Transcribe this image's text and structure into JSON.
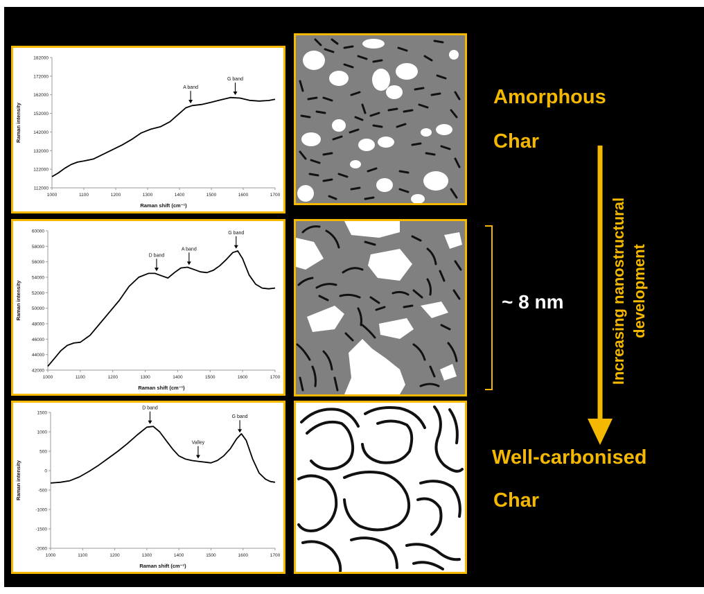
{
  "labels": {
    "amorphous": "Amorphous",
    "char_top": "Char",
    "well_carbonised": "Well-carbonised",
    "char_bottom": "Char",
    "scale": "~ 8 nm",
    "trend_line1": "Increasing nanostructural",
    "trend_line2": "development"
  },
  "colors": {
    "accent": "#f5b800",
    "background": "#000000",
    "matrix_gray": "#808080"
  },
  "chart_data": [
    {
      "type": "line",
      "xlabel": "Raman shift (cm⁻¹)",
      "ylabel": "Raman intensity",
      "xlim": [
        1000,
        1700
      ],
      "ylim": [
        112000,
        182000
      ],
      "xticks": [
        1000,
        1100,
        1200,
        1300,
        1400,
        1500,
        1600,
        1700
      ],
      "yticks": [
        112000,
        122000,
        132000,
        142000,
        152000,
        162000,
        172000,
        182000
      ],
      "x": [
        1000,
        1020,
        1040,
        1060,
        1080,
        1100,
        1130,
        1160,
        1190,
        1220,
        1250,
        1280,
        1310,
        1340,
        1370,
        1400,
        1420,
        1440,
        1470,
        1500,
        1530,
        1560,
        1590,
        1620,
        1650,
        1680,
        1700
      ],
      "y": [
        118000,
        120000,
        122500,
        124500,
        125800,
        126400,
        127500,
        130000,
        132500,
        135000,
        138000,
        141500,
        143500,
        144800,
        147500,
        152000,
        155000,
        156200,
        156800,
        158000,
        159300,
        160500,
        160200,
        159000,
        158600,
        158900,
        159600
      ],
      "annotations": [
        {
          "text": "A band",
          "x": 1435
        },
        {
          "text": "G band",
          "x": 1575
        }
      ]
    },
    {
      "type": "line",
      "xlabel": "Raman shift (cm⁻¹)",
      "ylabel": "Raman intensity",
      "xlim": [
        1000,
        1700
      ],
      "ylim": [
        42000,
        60000
      ],
      "xticks": [
        1000,
        1100,
        1200,
        1300,
        1400,
        1500,
        1600,
        1700
      ],
      "yticks": [
        42000,
        44000,
        46000,
        48000,
        50000,
        52000,
        54000,
        56000,
        58000,
        60000
      ],
      "x": [
        1000,
        1020,
        1040,
        1060,
        1080,
        1100,
        1130,
        1160,
        1190,
        1220,
        1250,
        1280,
        1310,
        1330,
        1350,
        1370,
        1390,
        1410,
        1430,
        1450,
        1470,
        1490,
        1510,
        1530,
        1550,
        1570,
        1585,
        1600,
        1620,
        1640,
        1660,
        1680,
        1700
      ],
      "y": [
        42500,
        43500,
        44500,
        45200,
        45500,
        45600,
        46500,
        48000,
        49500,
        51000,
        52800,
        54000,
        54500,
        54500,
        54200,
        53900,
        54600,
        55200,
        55300,
        55000,
        54700,
        54600,
        54900,
        55500,
        56300,
        57200,
        57400,
        56400,
        54300,
        53100,
        52600,
        52500,
        52600
      ],
      "annotations": [
        {
          "text": "D band",
          "x": 1335
        },
        {
          "text": "A band",
          "x": 1435
        },
        {
          "text": "G band",
          "x": 1580
        }
      ]
    },
    {
      "type": "line",
      "xlabel": "Raman shift (cm⁻¹)",
      "ylabel": "Raman intensity",
      "xlim": [
        1000,
        1700
      ],
      "ylim": [
        -2000,
        1500
      ],
      "xticks": [
        1000,
        1100,
        1200,
        1300,
        1400,
        1500,
        1600,
        1700
      ],
      "yticks": [
        -2000,
        -1500,
        -1000,
        -500,
        0,
        500,
        1000,
        1500
      ],
      "x": [
        1000,
        1030,
        1060,
        1090,
        1120,
        1150,
        1180,
        1210,
        1240,
        1270,
        1300,
        1320,
        1340,
        1360,
        1380,
        1400,
        1420,
        1440,
        1460,
        1480,
        1500,
        1520,
        1540,
        1560,
        1580,
        1595,
        1610,
        1630,
        1650,
        1670,
        1685,
        1700
      ],
      "y": [
        -320,
        -300,
        -260,
        -160,
        -20,
        140,
        320,
        500,
        700,
        920,
        1120,
        1140,
        1000,
        780,
        560,
        380,
        300,
        260,
        240,
        220,
        200,
        260,
        380,
        560,
        820,
        950,
        780,
        300,
        -60,
        -220,
        -280,
        -300
      ],
      "annotations": [
        {
          "text": "D band",
          "x": 1310
        },
        {
          "text": "Valley",
          "x": 1460
        },
        {
          "text": "G band",
          "x": 1590
        }
      ]
    }
  ]
}
